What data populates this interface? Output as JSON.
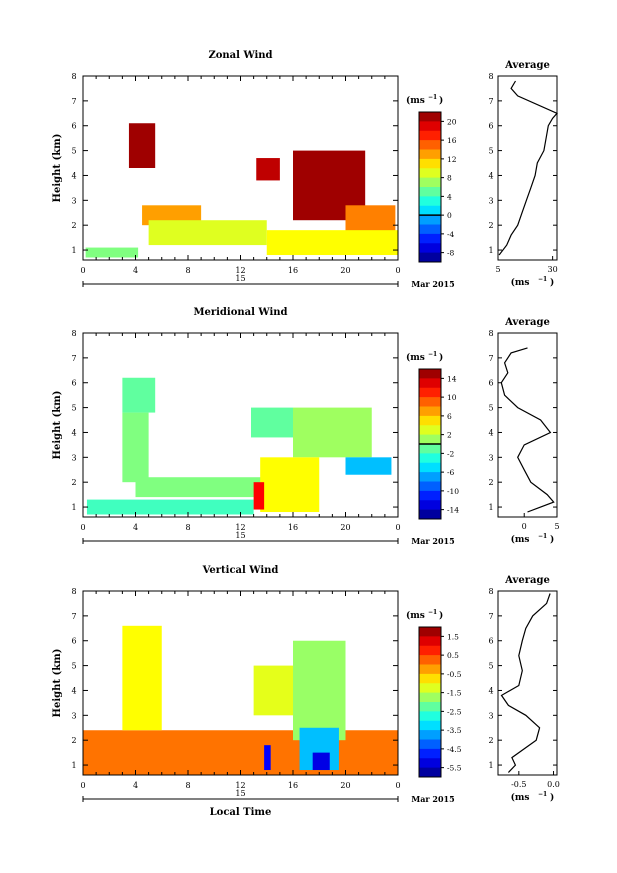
{
  "common": {
    "ylabel": "Height (km)",
    "unit_label": "(ms",
    "unit_exp": "−1",
    "x_ticks": [
      "0",
      "4",
      "8",
      "12",
      "16",
      "20",
      "0"
    ],
    "y_ticks": [
      "1",
      "2",
      "3",
      "4",
      "5",
      "6",
      "7",
      "8"
    ],
    "date_label": "15",
    "month_label": "Mar 2015",
    "xlabel": "Local Time",
    "avg_title": "Average",
    "avg_unit": "(ms",
    "avg_unit_exp": "−1"
  },
  "chart_data": [
    {
      "type": "heatmap",
      "title": "Zonal Wind",
      "xlabel": "",
      "ylabel": "Height (km)",
      "x_range_hours": [
        0,
        24
      ],
      "ylim_km": [
        0.6,
        8
      ],
      "colorbar": {
        "ticks": [
          "20",
          "16",
          "12",
          "8",
          "4",
          "0",
          "-4",
          "-8"
        ],
        "vmin": -10,
        "vmax": 22,
        "zero_line": 0
      },
      "regions": [
        {
          "x0": 0.2,
          "x1": 4.2,
          "y0": 0.7,
          "y1": 1.1,
          "value": 6
        },
        {
          "x0": 3.5,
          "x1": 5.5,
          "y0": 4.3,
          "y1": 6.1,
          "value": 21
        },
        {
          "x0": 4.5,
          "x1": 9.0,
          "y0": 2.0,
          "y1": 2.8,
          "value": 13
        },
        {
          "x0": 5.0,
          "x1": 14.0,
          "y0": 1.2,
          "y1": 2.2,
          "value": 9
        },
        {
          "x0": 13.2,
          "x1": 15.0,
          "y0": 3.8,
          "y1": 4.7,
          "value": 20
        },
        {
          "x0": 16.0,
          "x1": 21.5,
          "y0": 2.2,
          "y1": 5.0,
          "value": 21
        },
        {
          "x0": 20.0,
          "x1": 23.8,
          "y0": 1.3,
          "y1": 2.8,
          "value": 14
        },
        {
          "x0": 14.0,
          "x1": 24.0,
          "y0": 0.8,
          "y1": 1.8,
          "value": 10
        }
      ],
      "average": {
        "xlim": [
          5,
          32
        ],
        "x_ticks": [
          "5",
          "30"
        ],
        "height_km": [
          0.8,
          1.2,
          1.6,
          2.0,
          2.5,
          3.0,
          3.5,
          4.0,
          4.5,
          5.0,
          5.5,
          6.0,
          6.3,
          6.5,
          7.2,
          7.5,
          7.8
        ],
        "value": [
          5.5,
          9,
          11,
          14,
          16,
          18,
          20,
          22,
          23,
          26,
          27,
          28,
          30,
          32,
          14,
          11,
          13
        ]
      }
    },
    {
      "type": "heatmap",
      "title": "Meridional Wind",
      "xlabel": "",
      "ylabel": "Height (km)",
      "x_range_hours": [
        0,
        24
      ],
      "ylim_km": [
        0.6,
        8
      ],
      "colorbar": {
        "ticks": [
          "14",
          "10",
          "6",
          "2",
          "-2",
          "-6",
          "-10",
          "-14"
        ],
        "vmin": -16,
        "vmax": 16,
        "zero_line": 0
      },
      "regions": [
        {
          "x0": 3.0,
          "x1": 5.5,
          "y0": 4.8,
          "y1": 6.2,
          "value": -1
        },
        {
          "x0": 3.0,
          "x1": 5.0,
          "y0": 2.0,
          "y1": 4.8,
          "value": 0
        },
        {
          "x0": 4.0,
          "x1": 16.0,
          "y0": 1.4,
          "y1": 2.2,
          "value": 0
        },
        {
          "x0": 0.3,
          "x1": 13.0,
          "y0": 0.7,
          "y1": 1.3,
          "value": -2
        },
        {
          "x0": 12.8,
          "x1": 16.0,
          "y0": 3.8,
          "y1": 5.0,
          "value": -1
        },
        {
          "x0": 16.0,
          "x1": 22.0,
          "y0": 3.0,
          "y1": 5.0,
          "value": 1
        },
        {
          "x0": 20.0,
          "x1": 23.5,
          "y0": 2.3,
          "y1": 3.0,
          "value": -6
        },
        {
          "x0": 13.5,
          "x1": 18.0,
          "y0": 0.8,
          "y1": 3.0,
          "value": 4
        },
        {
          "x0": 13.0,
          "x1": 13.8,
          "y0": 0.9,
          "y1": 2.0,
          "value": 12
        }
      ],
      "average": {
        "xlim": [
          -4,
          5
        ],
        "x_ticks": [
          "0",
          "5"
        ],
        "height_km": [
          0.8,
          1.2,
          1.5,
          2.0,
          2.5,
          3.0,
          3.5,
          4.0,
          4.5,
          5.0,
          5.5,
          6.0,
          6.4,
          6.8,
          7.2,
          7.4
        ],
        "value": [
          0.5,
          4.5,
          3.5,
          1.0,
          0.0,
          -1.0,
          0.0,
          4.0,
          2.5,
          -1.0,
          -3.0,
          -3.5,
          -2.5,
          -3.0,
          -2.0,
          0.5
        ]
      }
    },
    {
      "type": "heatmap",
      "title": "Vertical Wind",
      "xlabel": "Local Time",
      "ylabel": "Height (km)",
      "x_range_hours": [
        0,
        24
      ],
      "ylim_km": [
        0.6,
        8
      ],
      "colorbar": {
        "ticks": [
          "1.5",
          "0.5",
          "-0.5",
          "-1.5",
          "-2.5",
          "-3.5",
          "-4.5",
          "-5.5"
        ],
        "vmin": -6,
        "vmax": 2,
        "zero_line": null
      },
      "regions": [
        {
          "x0": 0.0,
          "x1": 24.0,
          "y0": 0.6,
          "y1": 2.4,
          "value": 0.1
        },
        {
          "x0": 3.0,
          "x1": 6.0,
          "y0": 2.4,
          "y1": 6.6,
          "value": -1.0
        },
        {
          "x0": 13.0,
          "x1": 16.0,
          "y0": 3.0,
          "y1": 5.0,
          "value": -1.2
        },
        {
          "x0": 16.0,
          "x1": 20.0,
          "y0": 2.0,
          "y1": 6.0,
          "value": -1.8
        },
        {
          "x0": 16.5,
          "x1": 19.5,
          "y0": 0.8,
          "y1": 2.5,
          "value": -3.5
        },
        {
          "x0": 13.8,
          "x1": 14.3,
          "y0": 0.8,
          "y1": 1.8,
          "value": -5.0
        },
        {
          "x0": 17.5,
          "x1": 18.8,
          "y0": 0.8,
          "y1": 1.5,
          "value": -5.2
        }
      ],
      "average": {
        "xlim": [
          -0.8,
          0.05
        ],
        "x_ticks": [
          "-0.5",
          "0.0"
        ],
        "height_km": [
          0.7,
          1.0,
          1.3,
          2.0,
          2.5,
          3.0,
          3.4,
          3.8,
          4.2,
          4.8,
          5.4,
          6.0,
          6.5,
          7.0,
          7.5,
          7.9
        ],
        "value": [
          -0.65,
          -0.55,
          -0.6,
          -0.25,
          -0.2,
          -0.4,
          -0.65,
          -0.75,
          -0.5,
          -0.45,
          -0.5,
          -0.45,
          -0.4,
          -0.3,
          -0.1,
          -0.05
        ]
      }
    }
  ]
}
